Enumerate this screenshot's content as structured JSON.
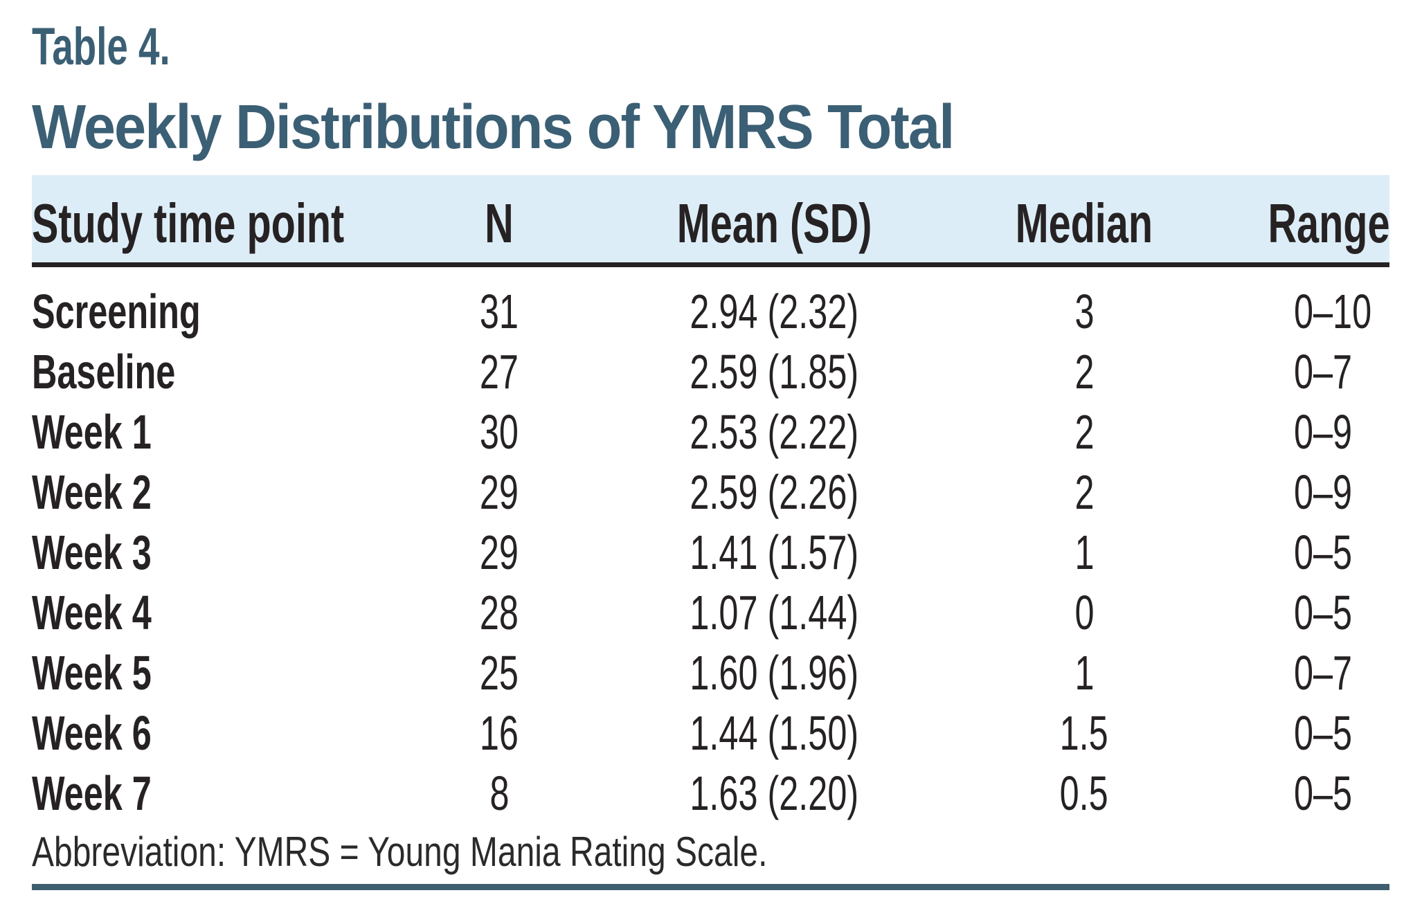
{
  "table_label": "Table 4.",
  "title": "Weekly Distributions of YMRS Total",
  "columns": [
    "Study time point",
    "N",
    "Mean (SD)",
    "Median",
    "Range"
  ],
  "rows": [
    {
      "time_point": "Screening",
      "n": "31",
      "mean_sd": "2.94 (2.32)",
      "median": "3",
      "range": "0–10"
    },
    {
      "time_point": "Baseline",
      "n": "27",
      "mean_sd": "2.59 (1.85)",
      "median": "2",
      "range": "0–7"
    },
    {
      "time_point": "Week 1",
      "n": "30",
      "mean_sd": "2.53 (2.22)",
      "median": "2",
      "range": "0–9"
    },
    {
      "time_point": "Week 2",
      "n": "29",
      "mean_sd": "2.59 (2.26)",
      "median": "2",
      "range": "0–9"
    },
    {
      "time_point": "Week 3",
      "n": "29",
      "mean_sd": "1.41 (1.57)",
      "median": "1",
      "range": "0–5"
    },
    {
      "time_point": "Week 4",
      "n": "28",
      "mean_sd": "1.07 (1.44)",
      "median": "0",
      "range": "0–5"
    },
    {
      "time_point": "Week 5",
      "n": "25",
      "mean_sd": "1.60 (1.96)",
      "median": "1",
      "range": "0–7"
    },
    {
      "time_point": "Week 6",
      "n": "16",
      "mean_sd": "1.44 (1.50)",
      "median": "1.5",
      "range": "0–5"
    },
    {
      "time_point": "Week 7",
      "n": "8",
      "mean_sd": "1.63 (2.20)",
      "median": "0.5",
      "range": "0–5"
    }
  ],
  "footnote": "Abbreviation: YMRS = Young Mania Rating Scale.",
  "colors": {
    "accent_teal": "#3b5f74",
    "header_band": "#ddedf7",
    "header_underline": "#262223",
    "body_text": "#262223",
    "bottom_rule": "#3f5e6f"
  },
  "chart_data": {
    "type": "table",
    "title": "Weekly Distributions of YMRS Total",
    "columns": [
      "Study time point",
      "N",
      "Mean (SD)",
      "Median",
      "Range"
    ],
    "rows": [
      [
        "Screening",
        31,
        "2.94 (2.32)",
        3,
        "0–10"
      ],
      [
        "Baseline",
        27,
        "2.59 (1.85)",
        2,
        "0–7"
      ],
      [
        "Week 1",
        30,
        "2.53 (2.22)",
        2,
        "0–9"
      ],
      [
        "Week 2",
        29,
        "2.59 (2.26)",
        2,
        "0–9"
      ],
      [
        "Week 3",
        29,
        "1.41 (1.57)",
        1,
        "0–5"
      ],
      [
        "Week 4",
        28,
        "1.07 (1.44)",
        0,
        "0–5"
      ],
      [
        "Week 5",
        25,
        "1.60 (1.96)",
        1,
        "0–7"
      ],
      [
        "Week 6",
        16,
        "1.44 (1.50)",
        1.5,
        "0–5"
      ],
      [
        "Week 7",
        8,
        "1.63 (2.20)",
        0.5,
        "0–5"
      ]
    ]
  }
}
